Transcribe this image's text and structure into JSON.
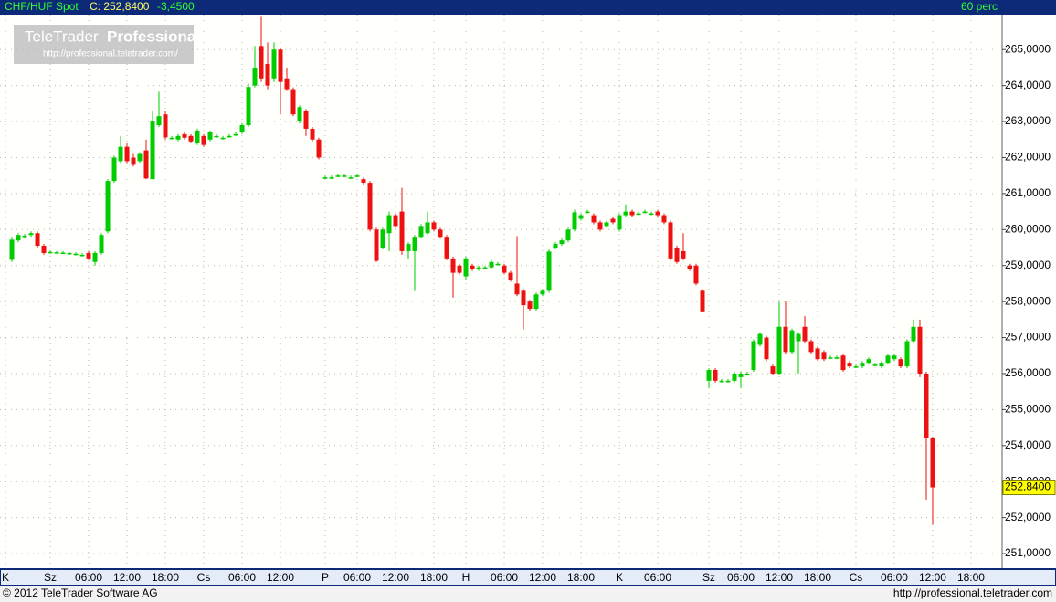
{
  "chart_data": {
    "type": "candlestick",
    "instrument": "CHF/HUF Spot",
    "header_close": "C: 252,8400",
    "header_change": "-3,4500",
    "interval": "60 perc",
    "up_color": "#00cc00",
    "down_color": "#ee1111",
    "ylim": [
      250.57,
      265.97
    ],
    "yticks": [
      {
        "value": 251,
        "label": "251,0000"
      },
      {
        "value": 252,
        "label": "252,0000"
      },
      {
        "value": 253,
        "label": "253,0000"
      },
      {
        "value": 254,
        "label": "254,0000"
      },
      {
        "value": 255,
        "label": "255,0000"
      },
      {
        "value": 256,
        "label": "256,0000"
      },
      {
        "value": 257,
        "label": "257,0000"
      },
      {
        "value": 258,
        "label": "258,0000"
      },
      {
        "value": 259,
        "label": "259,0000"
      },
      {
        "value": 260,
        "label": "260,0000"
      },
      {
        "value": 261,
        "label": "261,0000"
      },
      {
        "value": 262,
        "label": "262,0000"
      },
      {
        "value": 263,
        "label": "263,0000"
      },
      {
        "value": 264,
        "label": "264,0000"
      },
      {
        "value": 265,
        "label": "265,0000"
      }
    ],
    "xlim": [
      -1.86,
      154.86
    ],
    "xticks": [
      {
        "value": -1,
        "label": "K"
      },
      {
        "value": 6,
        "label": "Sz"
      },
      {
        "value": 12,
        "label": "06:00"
      },
      {
        "value": 18,
        "label": "12:00"
      },
      {
        "value": 24,
        "label": "18:00"
      },
      {
        "value": 30,
        "label": "Cs"
      },
      {
        "value": 36,
        "label": "06:00"
      },
      {
        "value": 42,
        "label": "12:00"
      },
      {
        "value": 49,
        "label": "P"
      },
      {
        "value": 54,
        "label": "06:00"
      },
      {
        "value": 60,
        "label": "12:00"
      },
      {
        "value": 66,
        "label": "18:00"
      },
      {
        "value": 71,
        "label": "H"
      },
      {
        "value": 77,
        "label": "06:00"
      },
      {
        "value": 83,
        "label": "12:00"
      },
      {
        "value": 89,
        "label": "18:00"
      },
      {
        "value": 95,
        "label": "K"
      },
      {
        "value": 101,
        "label": "06:00"
      },
      {
        "value": 109,
        "label": "Sz"
      },
      {
        "value": 114,
        "label": "06:00"
      },
      {
        "value": 120,
        "label": "12:00"
      },
      {
        "value": 126,
        "label": "18:00"
      },
      {
        "value": 132,
        "label": "Cs"
      },
      {
        "value": 138,
        "label": "06:00"
      },
      {
        "value": 144,
        "label": "12:00"
      },
      {
        "value": 150,
        "label": "18:00"
      }
    ],
    "grid": true,
    "last_label": {
      "value": 252.84,
      "label": "252,8400"
    },
    "ohlc": [
      [
        259.16,
        259.8,
        259.1,
        259.72
      ],
      [
        259.7,
        259.9,
        259.65,
        259.85
      ],
      [
        259.82,
        259.88,
        259.78,
        259.83
      ],
      [
        259.85,
        259.95,
        259.8,
        259.9
      ],
      [
        259.9,
        259.95,
        259.5,
        259.55
      ],
      [
        259.55,
        259.6,
        259.3,
        259.35
      ],
      [
        259.38,
        259.42,
        259.33,
        259.38
      ],
      [
        259.37,
        259.4,
        259.33,
        259.37
      ],
      [
        259.36,
        259.4,
        259.32,
        259.36
      ],
      [
        259.35,
        259.38,
        259.3,
        259.35
      ],
      [
        259.33,
        259.37,
        259.28,
        259.33
      ],
      [
        259.3,
        259.35,
        259.25,
        259.3
      ],
      [
        259.35,
        259.4,
        259.15,
        259.2
      ],
      [
        259.1,
        259.4,
        259.0,
        259.35
      ],
      [
        259.35,
        259.9,
        259.3,
        259.85
      ],
      [
        259.95,
        261.4,
        259.9,
        261.35
      ],
      [
        261.35,
        262.05,
        261.3,
        262.0
      ],
      [
        261.9,
        262.6,
        261.85,
        262.3
      ],
      [
        262.3,
        262.4,
        261.85,
        261.9
      ],
      [
        262.0,
        262.1,
        261.75,
        261.8
      ],
      [
        261.9,
        262.15,
        261.85,
        262.1
      ],
      [
        262.2,
        262.5,
        261.4,
        261.42
      ],
      [
        261.4,
        263.3,
        261.4,
        263.0
      ],
      [
        262.9,
        263.83,
        262.85,
        263.15
      ],
      [
        263.2,
        263.3,
        262.5,
        262.56
      ],
      [
        262.55,
        262.6,
        262.5,
        262.55
      ],
      [
        262.5,
        262.65,
        262.45,
        262.6
      ],
      [
        262.65,
        262.7,
        262.5,
        262.55
      ],
      [
        262.6,
        262.65,
        262.4,
        262.45
      ],
      [
        262.4,
        262.8,
        262.35,
        262.75
      ],
      [
        262.6,
        262.65,
        262.3,
        262.35
      ],
      [
        262.5,
        262.75,
        262.45,
        262.7
      ],
      [
        262.6,
        262.65,
        262.55,
        262.6
      ],
      [
        262.55,
        262.6,
        262.5,
        262.55
      ],
      [
        262.6,
        262.65,
        262.55,
        262.6
      ],
      [
        262.65,
        262.7,
        262.6,
        262.65
      ],
      [
        262.7,
        262.95,
        262.65,
        262.9
      ],
      [
        262.9,
        264.05,
        262.85,
        263.96
      ],
      [
        264.0,
        265.1,
        263.95,
        264.5
      ],
      [
        265.1,
        265.91,
        264.1,
        264.2
      ],
      [
        264.6,
        265.2,
        263.9,
        264.0
      ],
      [
        264.2,
        265.2,
        264.1,
        265.0
      ],
      [
        265.0,
        265.05,
        263.2,
        264.1
      ],
      [
        264.2,
        264.5,
        263.85,
        263.9
      ],
      [
        263.9,
        263.95,
        263.15,
        263.2
      ],
      [
        263.0,
        263.45,
        262.95,
        263.4
      ],
      [
        263.3,
        263.35,
        262.6,
        262.8
      ],
      [
        262.8,
        262.85,
        262.45,
        262.5
      ],
      [
        262.5,
        262.55,
        261.95,
        262.0
      ],
      [
        261.45,
        261.5,
        261.4,
        261.45
      ],
      [
        261.45,
        261.5,
        261.4,
        261.45
      ],
      [
        261.5,
        261.55,
        261.45,
        261.5
      ],
      [
        261.5,
        261.55,
        261.45,
        261.5
      ],
      [
        261.45,
        261.5,
        261.4,
        261.45
      ],
      [
        261.5,
        261.55,
        261.45,
        261.5
      ],
      [
        261.4,
        261.45,
        261.25,
        261.3
      ],
      [
        261.3,
        261.35,
        259.95,
        260.0
      ],
      [
        260.0,
        260.05,
        259.1,
        259.13
      ],
      [
        259.5,
        260.05,
        259.45,
        260.0
      ],
      [
        259.9,
        260.5,
        259.4,
        260.4
      ],
      [
        260.4,
        260.45,
        260.05,
        260.1
      ],
      [
        260.5,
        261.16,
        259.3,
        259.4
      ],
      [
        259.4,
        259.65,
        259.2,
        259.6
      ],
      [
        259.4,
        259.85,
        258.29,
        259.8
      ],
      [
        259.8,
        260.15,
        259.75,
        260.1
      ],
      [
        259.9,
        260.5,
        259.85,
        260.2
      ],
      [
        260.2,
        260.25,
        259.95,
        260.0
      ],
      [
        260.0,
        260.05,
        259.75,
        259.8
      ],
      [
        259.8,
        259.85,
        259.15,
        259.2
      ],
      [
        259.2,
        259.25,
        258.11,
        258.8
      ],
      [
        259.0,
        259.05,
        258.75,
        258.8
      ],
      [
        258.7,
        259.25,
        258.6,
        259.2
      ],
      [
        259.0,
        259.05,
        258.85,
        258.9
      ],
      [
        258.9,
        259.0,
        258.85,
        258.95
      ],
      [
        258.95,
        259.0,
        258.9,
        258.95
      ],
      [
        258.95,
        259.15,
        258.9,
        259.1
      ],
      [
        259.05,
        259.1,
        259.0,
        259.05
      ],
      [
        259.0,
        259.05,
        258.75,
        258.8
      ],
      [
        258.8,
        258.85,
        258.55,
        258.6
      ],
      [
        258.5,
        259.82,
        258.15,
        258.2
      ],
      [
        258.3,
        258.35,
        257.23,
        257.9
      ],
      [
        258.0,
        258.05,
        257.75,
        257.8
      ],
      [
        257.8,
        258.25,
        257.75,
        258.2
      ],
      [
        258.2,
        258.35,
        258.15,
        258.3
      ],
      [
        258.3,
        259.45,
        258.25,
        259.39
      ],
      [
        259.5,
        259.65,
        259.45,
        259.6
      ],
      [
        259.6,
        259.75,
        259.55,
        259.7
      ],
      [
        259.7,
        260.05,
        259.65,
        260.0
      ],
      [
        260.0,
        260.55,
        259.95,
        260.48
      ],
      [
        260.3,
        260.45,
        260.25,
        260.4
      ],
      [
        260.5,
        260.55,
        260.45,
        260.5
      ],
      [
        260.4,
        260.45,
        260.15,
        260.2
      ],
      [
        260.2,
        260.25,
        259.95,
        260.0
      ],
      [
        260.1,
        260.25,
        260.05,
        260.2
      ],
      [
        260.3,
        260.35,
        260.15,
        260.2
      ],
      [
        260.0,
        260.45,
        259.95,
        260.4
      ],
      [
        260.4,
        260.7,
        260.35,
        260.5
      ],
      [
        260.5,
        260.55,
        260.35,
        260.4
      ],
      [
        260.45,
        260.5,
        260.4,
        260.45
      ],
      [
        260.5,
        260.55,
        260.45,
        260.5
      ],
      [
        260.45,
        260.5,
        260.4,
        260.45
      ],
      [
        260.5,
        260.55,
        260.35,
        260.4
      ],
      [
        260.4,
        260.45,
        260.15,
        260.2
      ],
      [
        260.2,
        260.25,
        259.15,
        259.2
      ],
      [
        259.5,
        259.55,
        259.05,
        259.1
      ],
      [
        259.4,
        259.9,
        259.15,
        259.2
      ],
      [
        259.0,
        259.05,
        258.85,
        258.9
      ],
      [
        259.0,
        259.05,
        258.45,
        258.5
      ],
      [
        258.3,
        258.35,
        257.7,
        257.73
      ],
      [
        255.8,
        256.15,
        255.6,
        256.1
      ],
      [
        256.1,
        256.15,
        255.75,
        255.8
      ],
      [
        255.8,
        255.85,
        255.75,
        255.8
      ],
      [
        255.8,
        255.85,
        255.75,
        255.8
      ],
      [
        255.8,
        256.05,
        255.75,
        256.0
      ],
      [
        255.9,
        256.05,
        255.6,
        256.0
      ],
      [
        256.0,
        256.05,
        255.95,
        256.0
      ],
      [
        256.1,
        256.95,
        256.05,
        256.9
      ],
      [
        256.8,
        257.15,
        256.75,
        257.1
      ],
      [
        257.0,
        257.05,
        256.35,
        256.4
      ],
      [
        256.2,
        256.25,
        255.95,
        256.0
      ],
      [
        256.0,
        257.99,
        255.95,
        257.3
      ],
      [
        257.3,
        258.0,
        256.55,
        256.6
      ],
      [
        256.6,
        257.25,
        256.55,
        257.2
      ],
      [
        256.9,
        257.15,
        256.0,
        257.1
      ],
      [
        257.3,
        257.6,
        256.85,
        256.9
      ],
      [
        256.9,
        256.95,
        256.55,
        256.6
      ],
      [
        256.7,
        256.75,
        256.35,
        256.4
      ],
      [
        256.6,
        256.65,
        256.35,
        256.4
      ],
      [
        256.45,
        256.5,
        256.4,
        256.45
      ],
      [
        256.45,
        256.5,
        256.4,
        256.45
      ],
      [
        256.5,
        256.55,
        256.05,
        256.1
      ],
      [
        256.3,
        256.35,
        256.15,
        256.2
      ],
      [
        256.2,
        256.25,
        256.15,
        256.2
      ],
      [
        256.2,
        256.35,
        256.15,
        256.3
      ],
      [
        256.3,
        256.45,
        256.25,
        256.4
      ],
      [
        256.25,
        256.3,
        256.2,
        256.25
      ],
      [
        256.2,
        256.35,
        256.15,
        256.3
      ],
      [
        256.3,
        256.55,
        256.25,
        256.5
      ],
      [
        256.4,
        256.55,
        256.35,
        256.5
      ],
      [
        256.4,
        256.45,
        256.15,
        256.2
      ],
      [
        256.2,
        256.95,
        256.15,
        256.9
      ],
      [
        256.9,
        257.5,
        256.85,
        257.3
      ],
      [
        257.3,
        257.5,
        255.9,
        256.0
      ],
      [
        256.0,
        256.05,
        252.5,
        254.2
      ],
      [
        254.2,
        254.25,
        251.8,
        252.84
      ]
    ]
  },
  "watermark": {
    "brand": "TeleTrader",
    "product": "Professional",
    "url": "http://professional.teletrader.com/"
  },
  "footer": {
    "copyright": "© 2012 TeleTrader Software AG",
    "url": "http://professional.teletrader.com"
  }
}
